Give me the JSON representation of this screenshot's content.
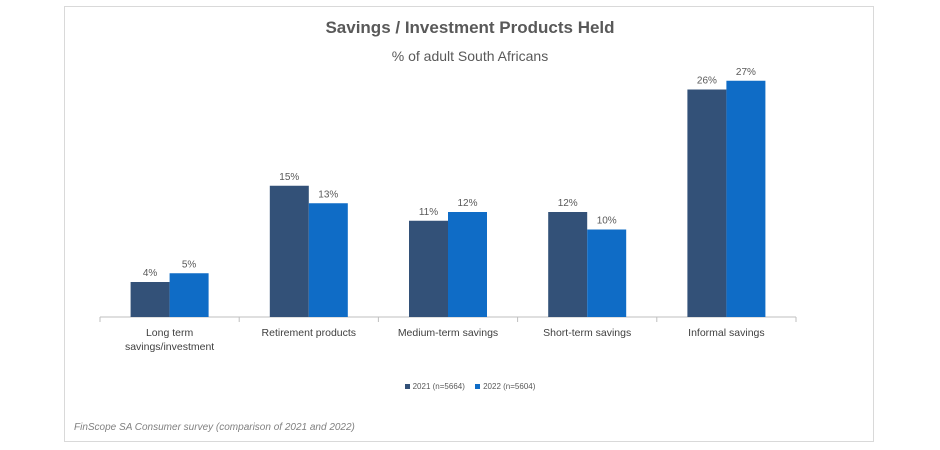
{
  "chart_data": {
    "type": "bar",
    "title": "Savings / Investment Products Held",
    "subtitle": "% of adult South Africans",
    "categories": [
      [
        "Long term",
        "savings/investment"
      ],
      [
        "Retirement products"
      ],
      [
        "Medium-term savings"
      ],
      [
        "Short-term savings"
      ],
      [
        "Informal savings"
      ]
    ],
    "series": [
      {
        "name": "2021 (n=5664)",
        "color": "#335178",
        "values": [
          4,
          15,
          11,
          12,
          26
        ],
        "labels": [
          "4%",
          "15%",
          "11%",
          "12%",
          "26%"
        ]
      },
      {
        "name": "2022 (n=5604)",
        "color": "#0f6cc6",
        "values": [
          5,
          13,
          12,
          10,
          27
        ],
        "labels": [
          "5%",
          "13%",
          "12%",
          "10%",
          "27%"
        ]
      }
    ],
    "ylim": [
      0,
      30
    ],
    "grid": false,
    "legend_position": "bottom"
  },
  "source_note": "FinScope SA Consumer survey (comparison of 2021 and 2022)"
}
